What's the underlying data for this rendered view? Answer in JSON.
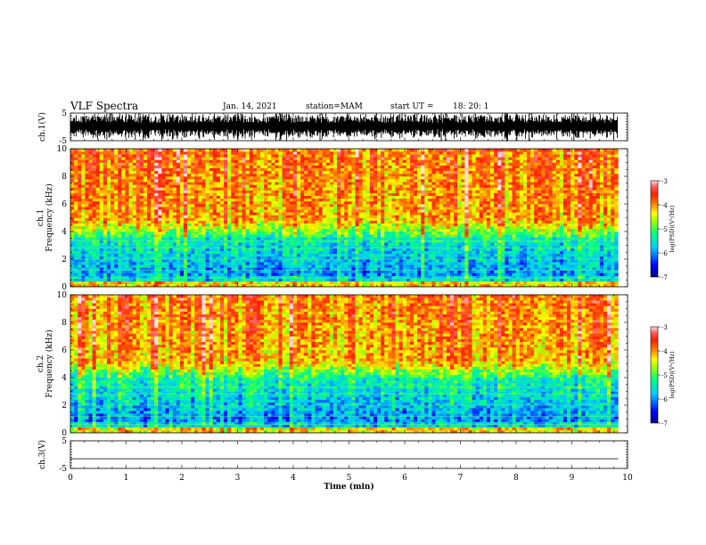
{
  "header": {
    "title": "VLF Spectra",
    "date": "Jan. 14, 2021",
    "station": "station=MAM",
    "start": "start UT =",
    "start_time": "18: 20: 1"
  },
  "colors": {
    "colormap": [
      "#000080",
      "#0000ff",
      "#00c8ff",
      "#00ff80",
      "#a0ff00",
      "#ffff00",
      "#ff8000",
      "#ff2000",
      "#ff3030",
      "#ffc8c8"
    ]
  },
  "chart_data": [
    {
      "type": "line",
      "name": "ch1-waveform",
      "ylabel": "ch.1(V)",
      "ylim": [
        -5,
        5
      ],
      "yticks": [
        -5,
        5
      ],
      "description_values": {
        "amplitude_min": -5,
        "amplitude_max": 5
      },
      "xlim": [
        0,
        10
      ]
    },
    {
      "type": "heatmap",
      "name": "ch1-spectrogram",
      "ylabel_1": "ch.1",
      "ylabel_2": "Frequency (kHz)",
      "ylim": [
        0,
        10
      ],
      "yticks": [
        0,
        2,
        4,
        6,
        8,
        10
      ],
      "xlim": [
        0,
        9.83
      ],
      "colorbar": {
        "label": "log(PSD)(V²/Hz)",
        "range": [
          -7,
          -3
        ],
        "ticks": [
          -3,
          -4,
          -5,
          -6,
          -7
        ]
      }
    },
    {
      "type": "heatmap",
      "name": "ch2-spectrogram",
      "ylabel_1": "ch.2",
      "ylabel_2": "Frequency (kHz)",
      "ylim": [
        0,
        10
      ],
      "yticks": [
        0,
        2,
        4,
        6,
        8,
        10
      ],
      "xlim": [
        0,
        9.83
      ],
      "colorbar": {
        "label": "log(PSD)(V²/Hz)",
        "range": [
          -7,
          -3
        ],
        "ticks": [
          -3,
          -4,
          -5,
          -6,
          -7
        ]
      }
    },
    {
      "type": "line",
      "name": "ch3-waveform",
      "ylabel": "ch.3(V)",
      "ylim": [
        -5,
        5
      ],
      "yticks": [
        -5,
        5
      ],
      "constant_value": -1.5,
      "xlim": [
        0,
        10
      ]
    }
  ],
  "xaxis": {
    "label": "Time (min)",
    "range": [
      0,
      10
    ],
    "ticks": [
      0,
      1,
      2,
      3,
      4,
      5,
      6,
      7,
      8,
      9,
      10
    ]
  }
}
